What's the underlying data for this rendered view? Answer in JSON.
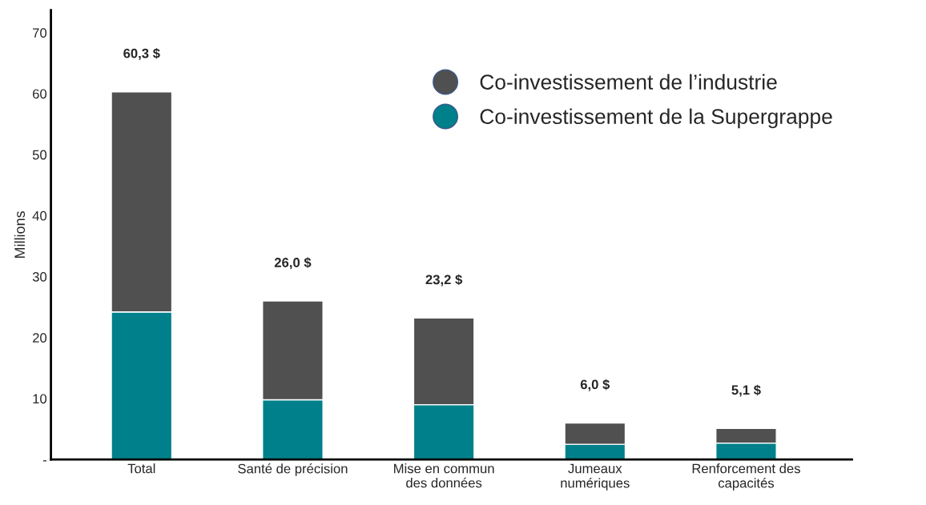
{
  "chart_data": {
    "type": "bar",
    "stacked": true,
    "ylabel": "Millions",
    "categories": [
      "Total",
      "Santé de précision",
      "Mise en commun\ndes données",
      "Jumeaux\nnumériques",
      "Renforcement des\ncapacités"
    ],
    "series": [
      {
        "name": "Co-investissement de la Supergrappe",
        "color": "#00808a",
        "values": [
          24.2,
          9.8,
          9.0,
          2.5,
          2.7
        ]
      },
      {
        "name": "Co-investissement de l’industrie",
        "color": "#505050",
        "values": [
          36.1,
          16.2,
          14.2,
          3.5,
          2.4
        ]
      }
    ],
    "totals": [
      "60,3 $",
      "26,0 $",
      "23,2 $",
      "6,0 $",
      "5,1 $"
    ],
    "ylim": [
      0,
      73.7
    ],
    "yticks": [
      {
        "value": 0,
        "label": "-"
      },
      10,
      20,
      30,
      40,
      50,
      60,
      70
    ],
    "grid": false,
    "legend": "top right"
  }
}
